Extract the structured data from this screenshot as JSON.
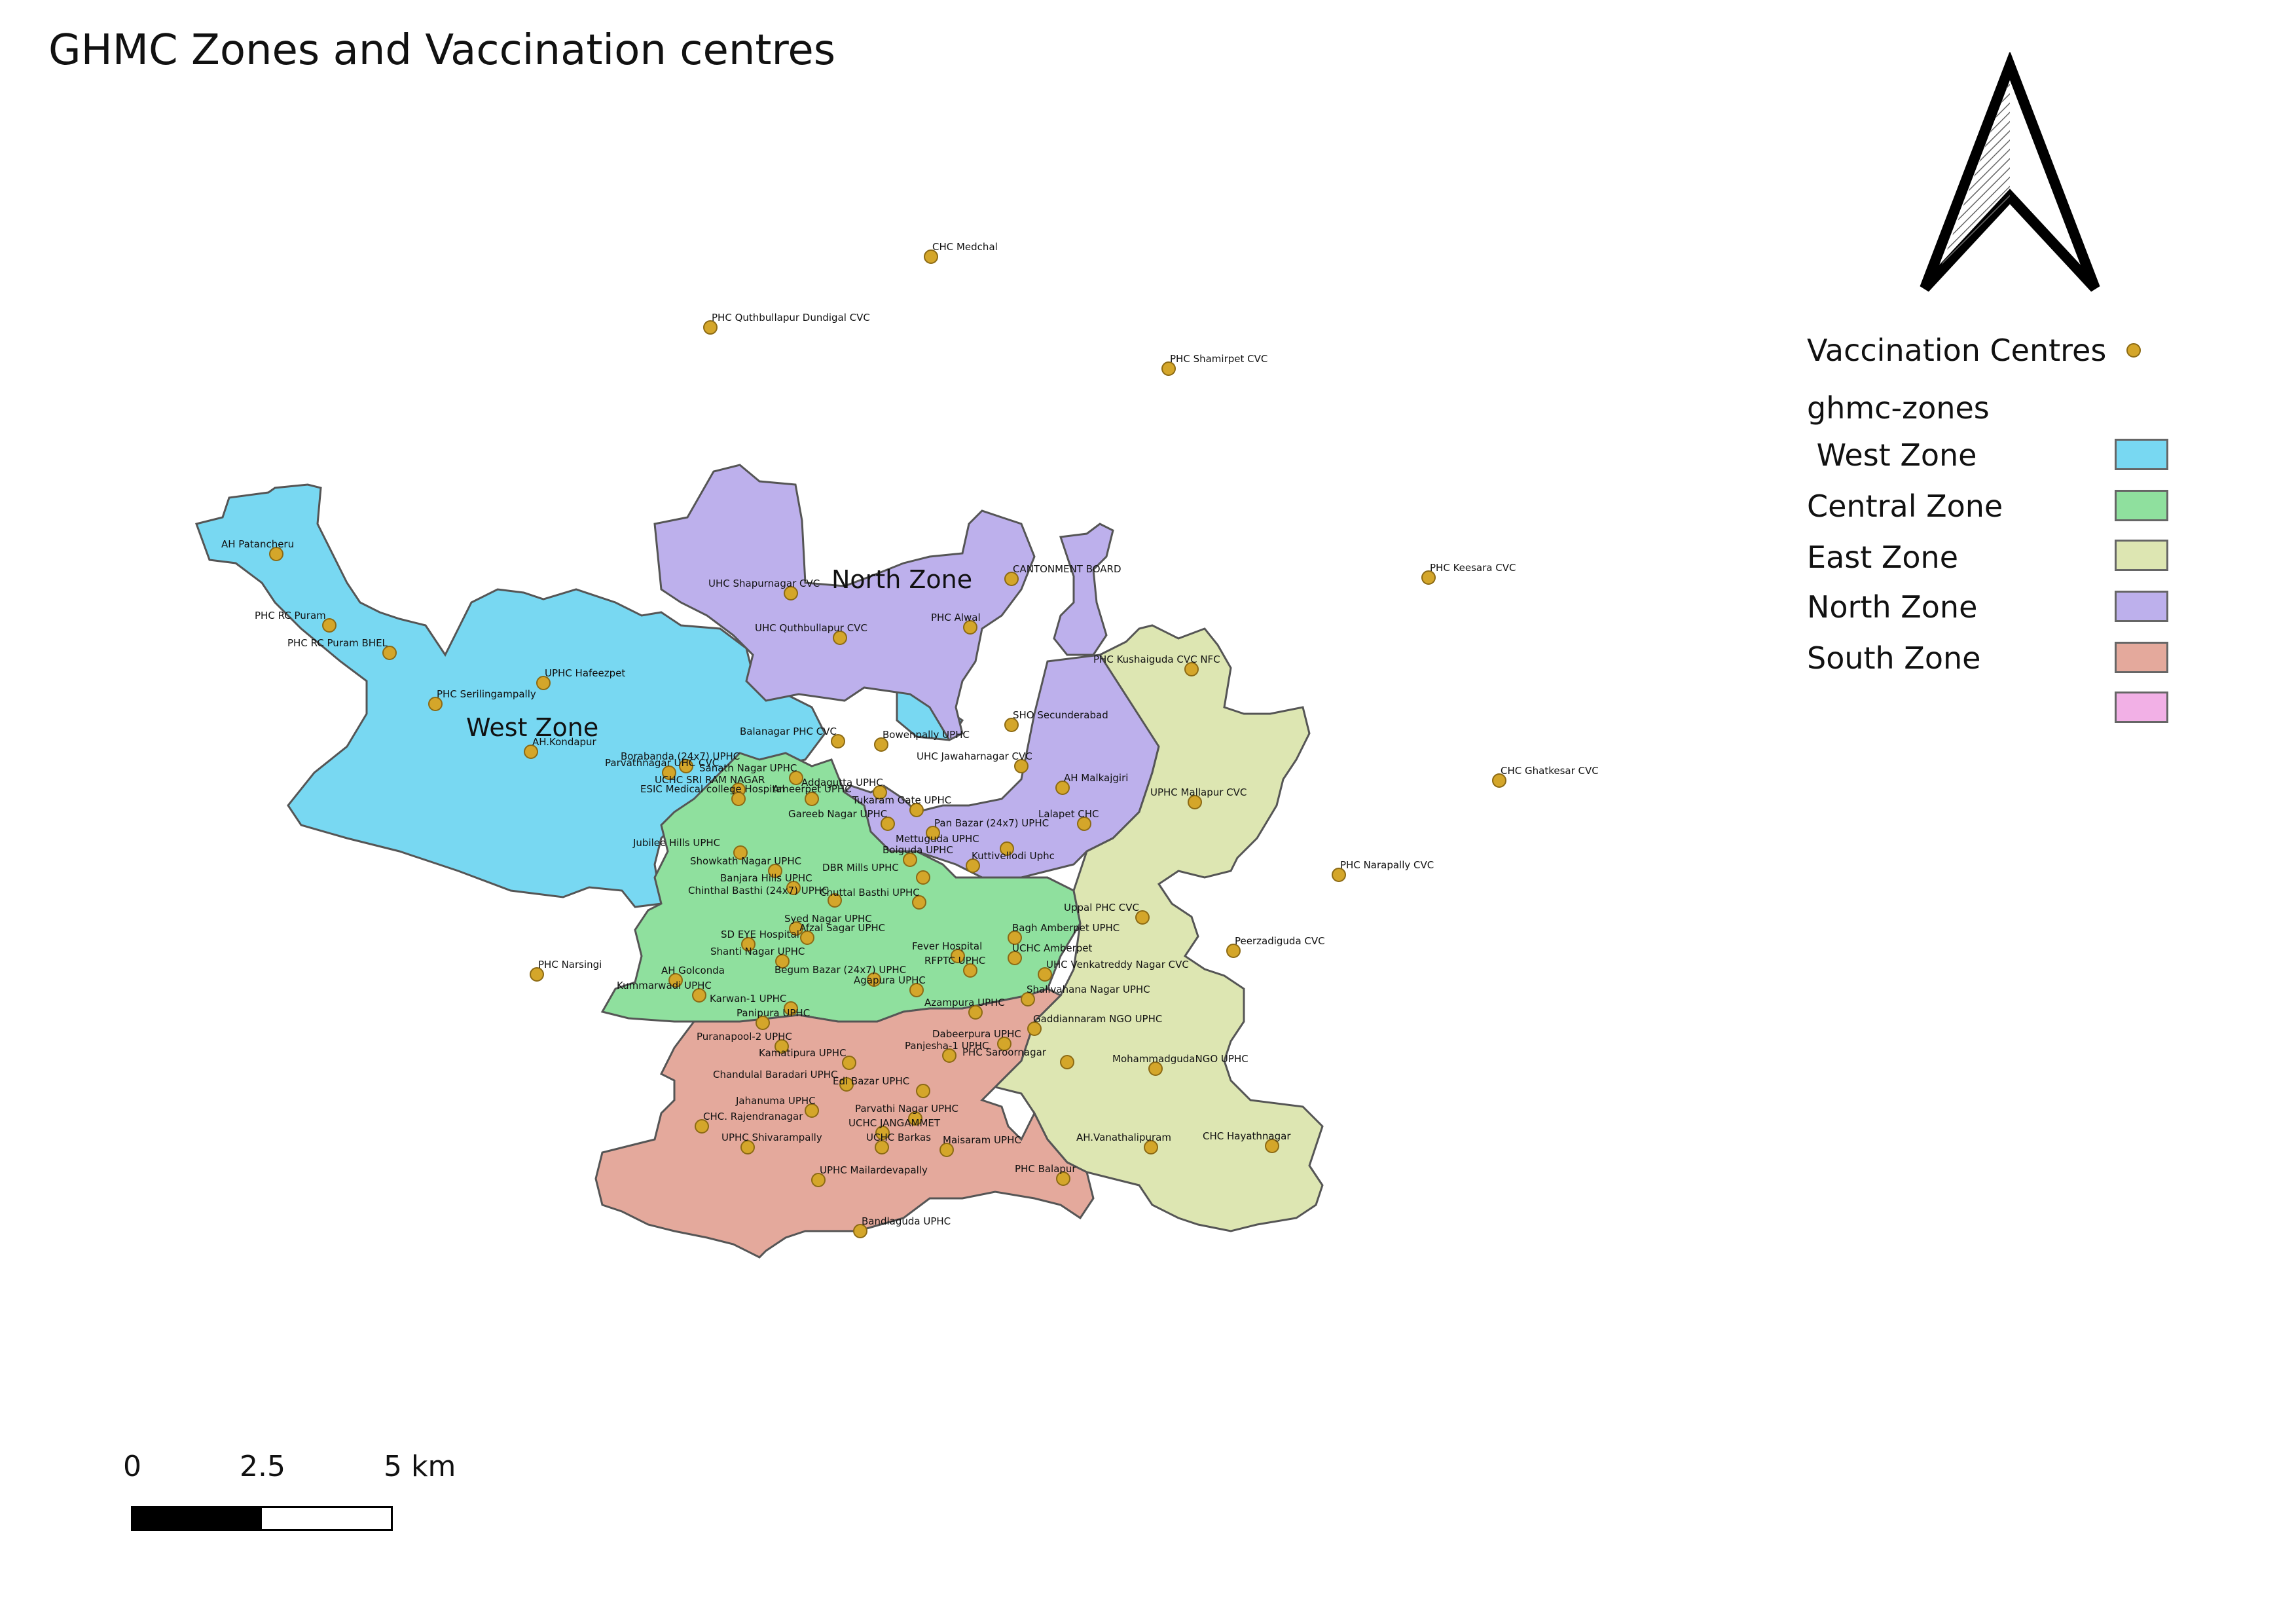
{
  "title": "GHMC Zones and Vaccination centres",
  "legend": {
    "centres_label": "Vaccination Centres",
    "zones_header": "ghmc-zones",
    "zones": [
      {
        "label": " West Zone",
        "color": "#78d8f2"
      },
      {
        "label": "Central Zone",
        "color": "#8fe09e"
      },
      {
        "label": "East Zone",
        "color": "#dde6b2"
      },
      {
        "label": "North Zone",
        "color": "#bdb0ec"
      },
      {
        "label": "South Zone",
        "color": "#e4a99c"
      },
      {
        "label": "",
        "color": "#f2b0e6"
      }
    ],
    "centre_color": "#d4a62a"
  },
  "zone_labels": {
    "west": "West Zone",
    "north": "North Zone"
  },
  "scale": {
    "labels": [
      "0",
      "2.5",
      "5 km"
    ]
  },
  "north_arrow": "north-arrow-icon",
  "centres": [
    "CHC Medchal",
    "PHC Quthbullapur Dundigal CVC",
    "PHC Shamirpet CVC",
    "AH Patancheru",
    "CANTONMENT BOARD",
    "PHC Keesara CVC",
    "UHC Shapurnagar CVC",
    "PHC Alwal",
    "UHC Quthbullapur CVC",
    "PHC RC Puram",
    "PHC RC Puram BHEL",
    "UPHC Hafeezpet",
    "PHC Kushaiguda CVC NFC",
    "PHC Serilingampally",
    "SHO Secunderabad",
    "Balanagar PHC CVC",
    "Bowenpally UPHC",
    "AH.Kondapur",
    "Borabanda (24x7) UPHC",
    "Parvathnagar UHC CVC",
    "Sanath Nagar UPHC",
    "UHC Jawaharnagar CVC",
    "CHC Ghatkesar CVC",
    "AH Malkajgiri",
    "UCHC SRI RAM NAGAR",
    "ESIC Medical college Hospital",
    "Addagutta UPHC",
    "UPHC Mallapur CVC",
    "Ameerpet UPHC",
    "Tukaram Gate UPHC",
    "Lalapet CHC",
    "Gareeb Nagar UPHC",
    "Pan Bazar (24x7) UPHC",
    "Jubilee Hills UPHC",
    "Mettuguda UPHC",
    "Boiguda UPHC",
    "PHC Narapally CVC",
    "Showkath Nagar UPHC",
    "DBR Mills UPHC",
    "Kuttivellodi Uphc",
    "Banjara Hills UPHC",
    "Chinthal Basthi (24x7) UPHC",
    "Chuttal Basthi UPHC",
    "Uppal PHC CVC",
    "Syed Nagar UPHC",
    "Afzal Sagar UPHC",
    "Bagh Amberpet UPHC",
    "Peerzadiguda CVC",
    "SD EYE Hospital",
    "Fever Hospital",
    "UCHC Amberpet",
    "Shanti Nagar UPHC",
    "RFPTC UPHC",
    "UHC Venkatreddy Nagar CVC",
    "PHC Narsingi",
    "AH Golconda",
    "Begum Bazar (24x7) UPHC",
    "Kummarwadi UPHC",
    "Agapura UPHC",
    "Shalivahana Nagar UPHC",
    "Karwan-1 UPHC",
    "Azampura UPHC",
    "Panipura UPHC",
    "Gaddiannaram NGO UPHC",
    "Dabeerpura UPHC",
    "Puranapool-2 UPHC",
    "Panjesha-1 UPHC",
    "PHC Saroornagar",
    "Kamatipura UPHC",
    "MohammadgudaNGO UPHC",
    "Chandulal Baradari UPHC",
    "Edi Bazar UPHC",
    "Jahanuma UPHC",
    "Parvathi Nagar UPHC",
    "CHC. Rajendranagar",
    "UCHC JANGAMMET",
    "AH.Vanathalipuram",
    "CHC Hayathnagar",
    "UPHC Shivarampally",
    "UCHC Barkas",
    "Maisaram UPHC",
    "PHC Balapur",
    "UPHC Mailardevapally",
    "Bandlaguda UPHC"
  ]
}
